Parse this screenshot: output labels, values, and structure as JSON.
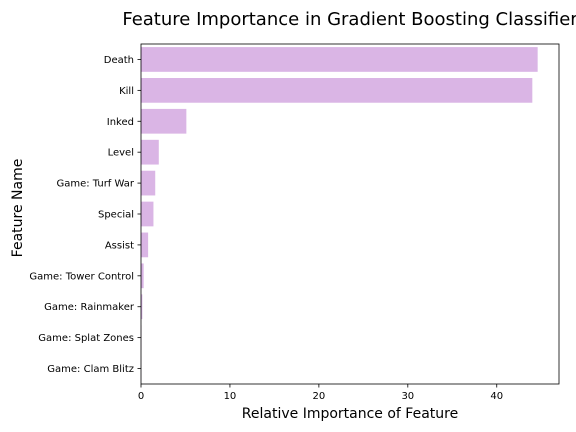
{
  "chart_data": {
    "type": "bar",
    "orientation": "horizontal",
    "title": "Feature Importance in Gradient Boosting Classifier",
    "xlabel": "Relative Importance of Feature",
    "ylabel": "Feature Name",
    "categories": [
      "Death",
      "Kill",
      "Inked",
      "Level",
      "Game: Turf War",
      "Special",
      "Assist",
      "Game: Tower Control",
      "Game: Rainmaker",
      "Game: Splat Zones",
      "Game: Clam Blitz"
    ],
    "values": [
      44.6,
      44.0,
      5.1,
      2.0,
      1.6,
      1.4,
      0.8,
      0.3,
      0.15,
      0.05,
      0.02
    ],
    "xlim": [
      0,
      47
    ],
    "xticks": [
      0,
      10,
      20,
      30,
      40
    ],
    "grid": false,
    "bar_color": "#dab5e5"
  }
}
